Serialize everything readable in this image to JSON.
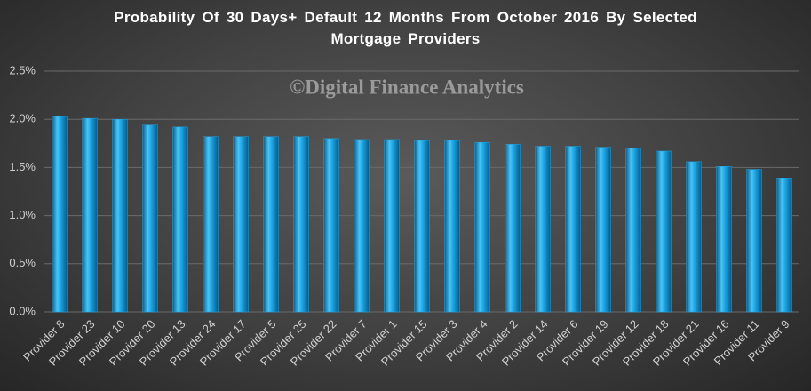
{
  "chart_data": {
    "type": "bar",
    "title": "Probability Of 30 Days+ Default 12 Months From October 2016 By Selected Mortgage Providers",
    "annotation": "©Digital Finance Analytics",
    "categories": [
      "Provider 8",
      "Provider 23",
      "Provider 10",
      "Provider 20",
      "Provider 13",
      "Provider 24",
      "Provider 17",
      "Provider 5",
      "Provider 25",
      "Provider 22",
      "Provider 7",
      "Provider 1",
      "Provider 15",
      "Provider 3",
      "Provider 4",
      "Provider 2",
      "Provider 14",
      "Provider 6",
      "Provider 19",
      "Provider 12",
      "Provider 18",
      "Provider 21",
      "Provider 16",
      "Provider 11",
      "Provider 9"
    ],
    "values": [
      2.03,
      2.01,
      2.0,
      1.94,
      1.92,
      1.82,
      1.82,
      1.82,
      1.82,
      1.8,
      1.79,
      1.79,
      1.78,
      1.78,
      1.76,
      1.74,
      1.72,
      1.72,
      1.71,
      1.7,
      1.67,
      1.56,
      1.51,
      1.48,
      1.39
    ],
    "color": "#1ea6e6",
    "ylim": [
      0,
      2.5
    ],
    "yticks": [
      {
        "value": 0,
        "label": "0.0%"
      },
      {
        "value": 0.5,
        "label": "0.5%"
      },
      {
        "value": 1.0,
        "label": "1.0%"
      },
      {
        "value": 1.5,
        "label": "1.5%"
      },
      {
        "value": 2.0,
        "label": "2.0%"
      },
      {
        "value": 2.5,
        "label": "2.5%"
      }
    ],
    "grid": true
  }
}
